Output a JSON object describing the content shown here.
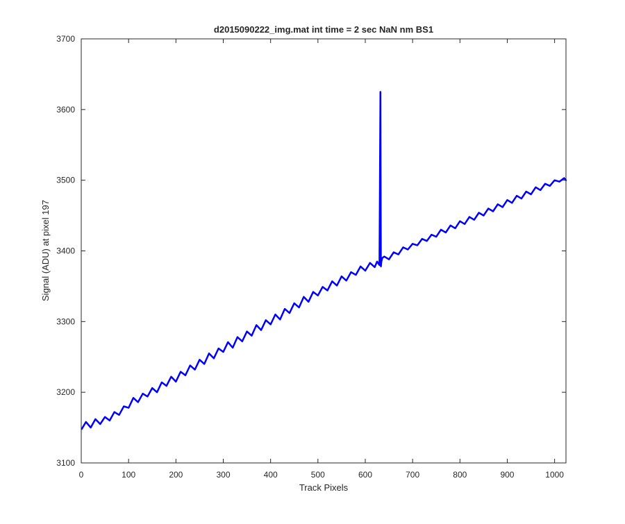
{
  "chart_data": {
    "type": "line",
    "title": "d2015090222_img.mat int time = 2 sec  NaN nm BS1",
    "xlabel": "Track Pixels",
    "ylabel": "Signal (ADU) at pixel 197",
    "xlim": [
      0,
      1024
    ],
    "ylim": [
      3100,
      3700
    ],
    "xticks": [
      0,
      100,
      200,
      300,
      400,
      500,
      600,
      700,
      800,
      900,
      1000
    ],
    "yticks": [
      3100,
      3200,
      3300,
      3400,
      3500,
      3600,
      3700
    ],
    "grid": false,
    "line_color": "#0000ff",
    "series": [
      {
        "x": [
          1,
          10,
          20,
          30,
          40,
          50,
          60,
          70,
          80,
          90,
          100,
          110,
          120,
          130,
          140,
          150,
          160,
          170,
          180,
          190,
          200,
          210,
          220,
          230,
          240,
          250,
          260,
          270,
          280,
          290,
          300,
          310,
          320,
          330,
          340,
          350,
          360,
          370,
          380,
          390,
          400,
          410,
          420,
          430,
          440,
          450,
          460,
          470,
          480,
          490,
          500,
          510,
          520,
          530,
          540,
          550,
          560,
          570,
          580,
          590,
          600,
          610,
          620,
          625,
          630,
          632,
          633,
          634,
          636,
          640,
          650,
          660,
          670,
          680,
          690,
          700,
          710,
          720,
          730,
          740,
          750,
          760,
          770,
          780,
          790,
          800,
          810,
          820,
          830,
          840,
          850,
          860,
          870,
          880,
          890,
          900,
          910,
          920,
          930,
          940,
          950,
          960,
          970,
          980,
          990,
          1000,
          1010,
          1020,
          1024
        ],
        "y": [
          3148,
          3158,
          3150,
          3162,
          3155,
          3165,
          3160,
          3172,
          3168,
          3180,
          3178,
          3192,
          3186,
          3198,
          3194,
          3206,
          3200,
          3214,
          3209,
          3222,
          3215,
          3229,
          3224,
          3238,
          3232,
          3246,
          3240,
          3255,
          3248,
          3262,
          3257,
          3271,
          3263,
          3278,
          3272,
          3286,
          3280,
          3295,
          3288,
          3302,
          3296,
          3310,
          3303,
          3318,
          3312,
          3326,
          3320,
          3335,
          3328,
          3342,
          3337,
          3349,
          3344,
          3357,
          3351,
          3364,
          3358,
          3370,
          3366,
          3378,
          3372,
          3383,
          3377,
          3385,
          3380,
          3625,
          3378,
          3385,
          3390,
          3392,
          3388,
          3398,
          3395,
          3405,
          3402,
          3410,
          3408,
          3417,
          3414,
          3423,
          3420,
          3430,
          3426,
          3436,
          3432,
          3442,
          3438,
          3448,
          3444,
          3454,
          3450,
          3460,
          3456,
          3466,
          3462,
          3472,
          3468,
          3478,
          3474,
          3484,
          3480,
          3490,
          3486,
          3495,
          3492,
          3500,
          3498,
          3503,
          3500
        ]
      }
    ]
  }
}
